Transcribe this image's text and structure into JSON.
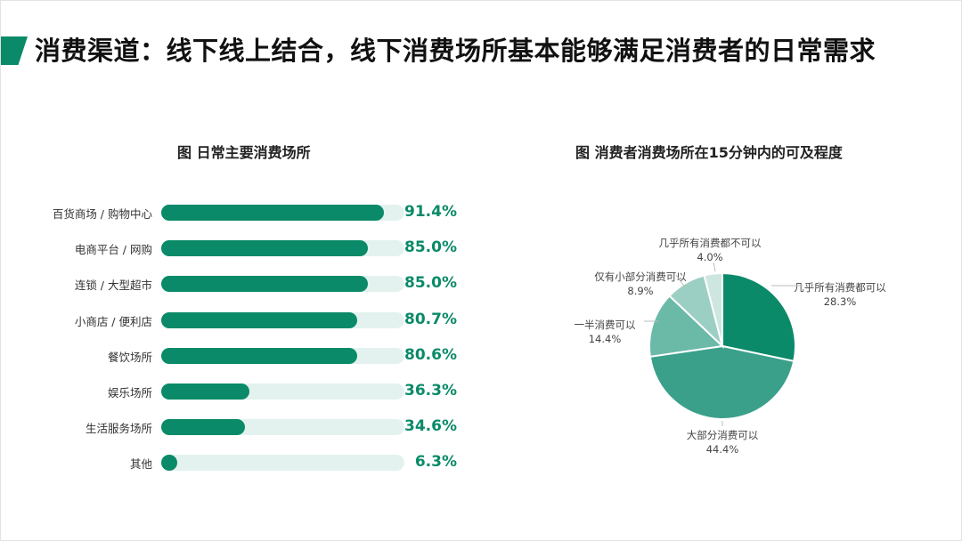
{
  "page": {
    "title": "消费渠道：线下线上结合，线下消费场所基本能够满足消费者的日常需求",
    "accent_color": "#0a8a68"
  },
  "chart_data": [
    {
      "type": "bar",
      "orientation": "horizontal",
      "title": "图 日常主要消费场所",
      "categories": [
        "百货商场 / 购物中心",
        "电商平台 / 网购",
        "连锁 / 大型超市",
        "小商店 / 便利店",
        "餐饮场所",
        "娱乐场所",
        "生活服务场所",
        "其他"
      ],
      "values": [
        91.4,
        85.0,
        85.0,
        80.7,
        80.6,
        36.3,
        34.6,
        6.3
      ],
      "value_labels": [
        "91.4%",
        "85.0%",
        "85.0%",
        "80.7%",
        "80.6%",
        "36.3%",
        "34.6%",
        "6.3%"
      ],
      "xlim": [
        0,
        100
      ],
      "unit": "%",
      "grid": false,
      "legend": "none",
      "bar_color": "#0a8a68",
      "track_color": "#e3f2ee"
    },
    {
      "type": "pie",
      "title": "图 消费者消费场所在15分钟内的可及程度",
      "labels": [
        "几乎所有消费都可以",
        "大部分消费可以",
        "一半消费可以",
        "仅有小部分消费可以",
        "几乎所有消费都不可以"
      ],
      "values": [
        28.3,
        44.4,
        14.4,
        8.9,
        4.0
      ],
      "value_labels": [
        "28.3%",
        "44.4%",
        "14.4%",
        "8.9%",
        "4.0%"
      ],
      "colors": [
        "#0a8a68",
        "#3aa08a",
        "#6bbaa8",
        "#9ccfc3",
        "#cde6df"
      ],
      "legend": "none"
    }
  ]
}
